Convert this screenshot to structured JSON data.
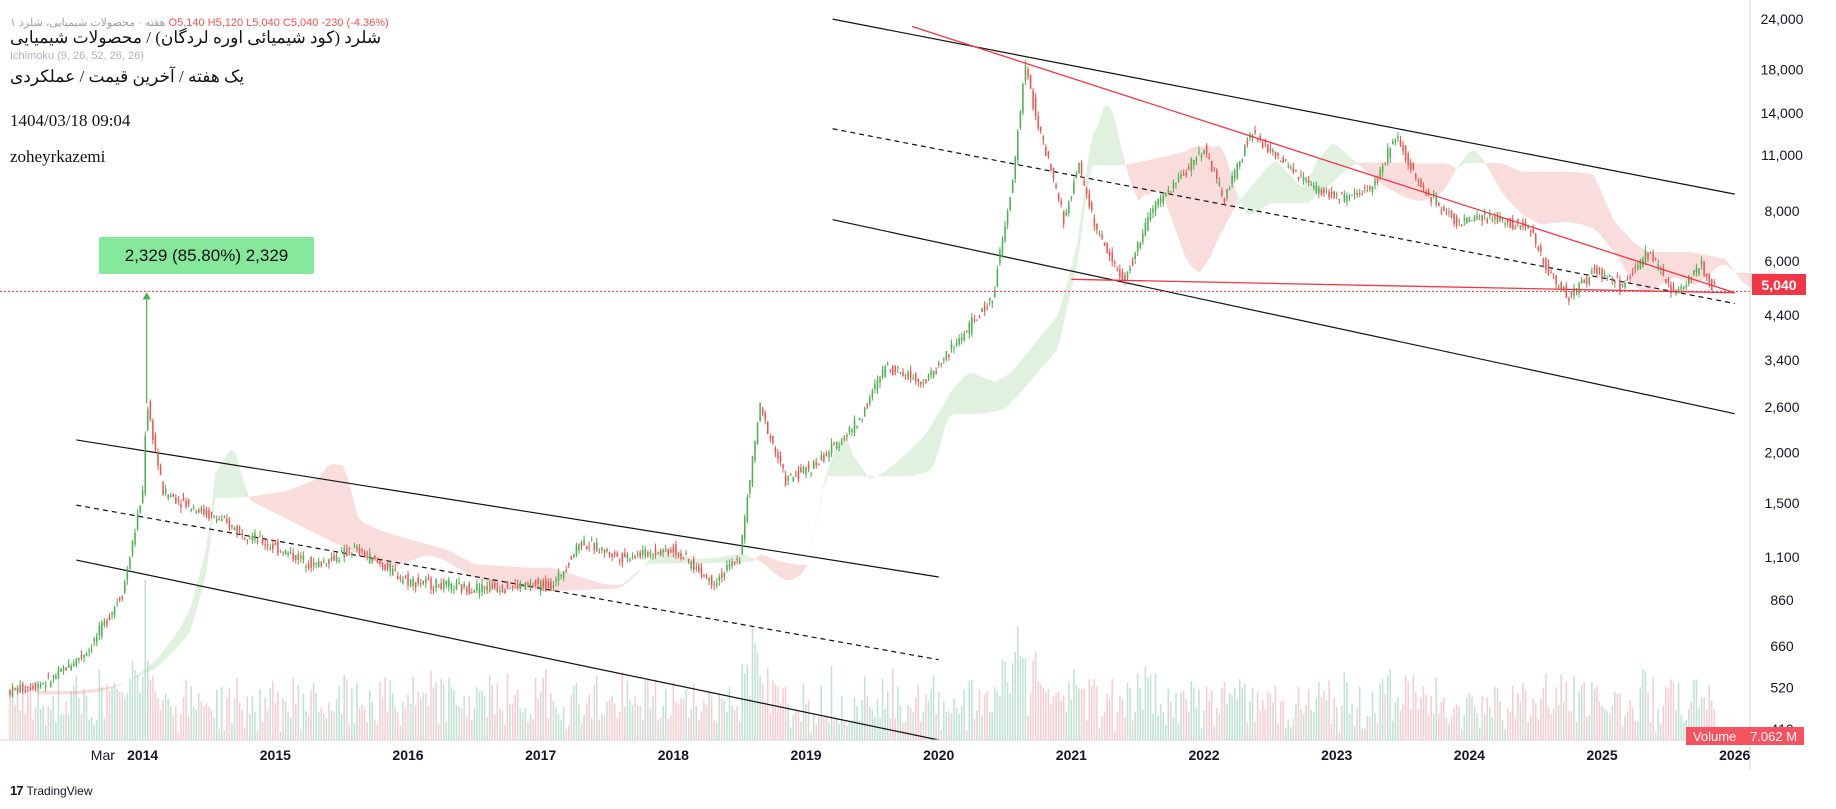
{
  "legend": {
    "symbol_line": "۱ هفته · محصولات شیمیایی، شلرد",
    "ohlc_line": "O5,140 H5,120 L5,040 C5,040 -230 (-4.36%)",
    "indicator": "Ichimoku (9, 26, 52, 26, 26)",
    "title": "شلرد (کود شیمیائی اوره لردگان) / محصولات شیمیایی",
    "subtitle": "یک هفته / آخرین قیمت / عملکردی",
    "date": "1404/03/18 09:04",
    "author": "zoheyrkazemi"
  },
  "measure": {
    "label": "2,329 (85.80%) 2,329"
  },
  "last_price": {
    "label": "5,040"
  },
  "volume_tag": {
    "label": "Volume",
    "value": "7.062 M"
  },
  "branding": {
    "name": "TradingView",
    "mark": "17"
  },
  "colors": {
    "up": "#26a69a",
    "up_candle": "#4caf50",
    "down": "#ef5350",
    "channel": "#111111",
    "trendline": "#f23645",
    "cloud_bull": "#a5d6a7",
    "cloud_bear": "#ef9a9a",
    "last_price": "#f23645",
    "measure": "#86e89b"
  },
  "chart_data": {
    "type": "candlestick",
    "scale": "log",
    "y_ticks": [
      410,
      520,
      660,
      860,
      1100,
      1500,
      2000,
      2600,
      3400,
      4400,
      6000,
      8000,
      11000,
      14000,
      18000,
      24000
    ],
    "y_tick_labels": [
      "410",
      "520",
      "660",
      "860",
      "1,100",
      "1,500",
      "2,000",
      "2,600",
      "3,400",
      "4,400",
      "6,000",
      "8,000",
      "11,000",
      "14,000",
      "18,000",
      "24,000"
    ],
    "x_ticks": [
      "Mar",
      "2014",
      "2015",
      "2016",
      "2017",
      "2018",
      "2019",
      "2020",
      "2021",
      "2022",
      "2023",
      "2024",
      "2025",
      "2026"
    ],
    "ylim": [
      385,
      25000
    ],
    "last_price": 5040,
    "price_path": [
      {
        "x": 2013.0,
        "y": 510
      },
      {
        "x": 2013.3,
        "y": 540
      },
      {
        "x": 2013.6,
        "y": 650
      },
      {
        "x": 2013.85,
        "y": 900
      },
      {
        "x": 2014.0,
        "y": 1600
      },
      {
        "x": 2014.03,
        "y": 2700
      },
      {
        "x": 2014.15,
        "y": 1600
      },
      {
        "x": 2014.5,
        "y": 1400
      },
      {
        "x": 2014.9,
        "y": 1200
      },
      {
        "x": 2015.3,
        "y": 1050
      },
      {
        "x": 2015.6,
        "y": 1150
      },
      {
        "x": 2016.0,
        "y": 960
      },
      {
        "x": 2016.4,
        "y": 920
      },
      {
        "x": 2016.8,
        "y": 930
      },
      {
        "x": 2017.1,
        "y": 940
      },
      {
        "x": 2017.3,
        "y": 1200
      },
      {
        "x": 2017.6,
        "y": 1100
      },
      {
        "x": 2018.0,
        "y": 1150
      },
      {
        "x": 2018.3,
        "y": 950
      },
      {
        "x": 2018.5,
        "y": 1100
      },
      {
        "x": 2018.65,
        "y": 2600
      },
      {
        "x": 2018.85,
        "y": 1700
      },
      {
        "x": 2019.1,
        "y": 1900
      },
      {
        "x": 2019.4,
        "y": 2400
      },
      {
        "x": 2019.6,
        "y": 3300
      },
      {
        "x": 2019.9,
        "y": 3000
      },
      {
        "x": 2020.2,
        "y": 4000
      },
      {
        "x": 2020.4,
        "y": 4800
      },
      {
        "x": 2020.55,
        "y": 9000
      },
      {
        "x": 2020.65,
        "y": 18500
      },
      {
        "x": 2020.75,
        "y": 13000
      },
      {
        "x": 2020.95,
        "y": 7500
      },
      {
        "x": 2021.05,
        "y": 10500
      },
      {
        "x": 2021.2,
        "y": 7000
      },
      {
        "x": 2021.4,
        "y": 5300
      },
      {
        "x": 2021.6,
        "y": 8000
      },
      {
        "x": 2021.8,
        "y": 9500
      },
      {
        "x": 2022.0,
        "y": 11500
      },
      {
        "x": 2022.15,
        "y": 8500
      },
      {
        "x": 2022.35,
        "y": 12500
      },
      {
        "x": 2022.6,
        "y": 10500
      },
      {
        "x": 2022.85,
        "y": 9000
      },
      {
        "x": 2023.1,
        "y": 8500
      },
      {
        "x": 2023.3,
        "y": 9500
      },
      {
        "x": 2023.45,
        "y": 12500
      },
      {
        "x": 2023.6,
        "y": 9500
      },
      {
        "x": 2023.9,
        "y": 7500
      },
      {
        "x": 2024.2,
        "y": 7700
      },
      {
        "x": 2024.45,
        "y": 7200
      },
      {
        "x": 2024.6,
        "y": 5600
      },
      {
        "x": 2024.75,
        "y": 4900
      },
      {
        "x": 2024.95,
        "y": 5700
      },
      {
        "x": 2025.15,
        "y": 5200
      },
      {
        "x": 2025.35,
        "y": 6300
      },
      {
        "x": 2025.55,
        "y": 4950
      },
      {
        "x": 2025.75,
        "y": 5900
      },
      {
        "x": 2025.85,
        "y": 5040
      }
    ],
    "channels": [
      {
        "upper": [
          [
            2013.5,
            2150
          ],
          [
            2020.0,
            980
          ]
        ],
        "mid": [
          [
            2013.5,
            1480
          ],
          [
            2020.0,
            610
          ]
        ],
        "lower": [
          [
            2013.5,
            1080
          ],
          [
            2020.0,
            385
          ]
        ]
      },
      {
        "upper": [
          [
            2019.2,
            24000
          ],
          [
            2026.0,
            8800
          ]
        ],
        "mid": [
          [
            2019.2,
            12800
          ],
          [
            2026.0,
            4700
          ]
        ],
        "lower": [
          [
            2019.2,
            7600
          ],
          [
            2026.0,
            2500
          ]
        ]
      }
    ],
    "trendlines": [
      {
        "from": [
          2019.8,
          23000
        ],
        "to": [
          2026.0,
          5000
        ]
      },
      {
        "from": [
          2021.0,
          5400
        ],
        "to": [
          2026.0,
          5000
        ]
      }
    ]
  }
}
